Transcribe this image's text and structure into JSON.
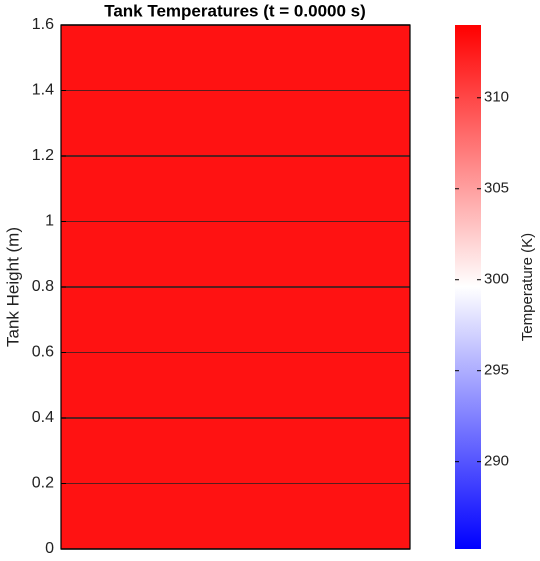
{
  "chart_data": {
    "type": "heatmap",
    "title": "Tank Temperatures (t = 0.0000 s)",
    "y_label": "Tank Height (m)",
    "y_edges": [
      0,
      0.2,
      0.4,
      0.6,
      0.8,
      1,
      1.2,
      1.4,
      1.6
    ],
    "values": [
      313,
      313,
      313,
      313,
      313,
      313,
      313,
      313
    ],
    "ylim": [
      0,
      1.6
    ],
    "yticks": [
      0,
      0.2,
      0.4,
      0.6,
      0.8,
      1,
      1.2,
      1.4,
      1.6
    ],
    "colorbar": {
      "label": "Temperature (K)",
      "clim": [
        285.2,
        314
      ],
      "ticks": [
        290,
        295,
        300,
        305,
        310
      ],
      "colors": [
        "#0000ff",
        "#ffffff",
        "#ff0000"
      ]
    }
  }
}
